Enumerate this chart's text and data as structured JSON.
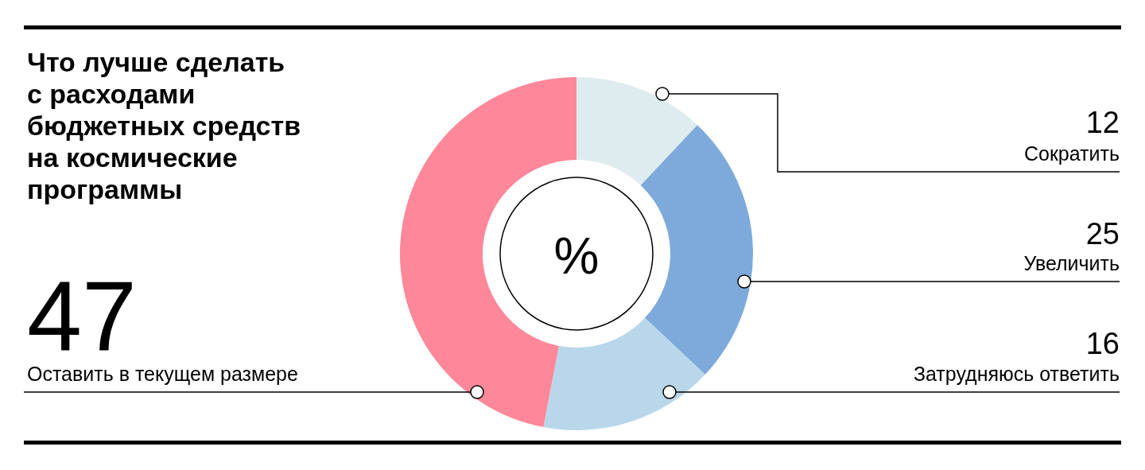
{
  "chart_data": {
    "type": "donut",
    "title": "Что лучше сделать\nс расходами\nбюджетных средств\nна космические\nпрограммы",
    "categories": [
      "Сократить",
      "Увеличить",
      "Затрудняюсь ответить",
      "Оставить в текущем размере"
    ],
    "values": [
      12,
      25,
      16,
      47
    ],
    "colors": [
      "#dfecef",
      "#7eaadb",
      "#b9d7ea",
      "#fe8799"
    ],
    "annotations": [
      "%"
    ],
    "data_labels": true
  }
}
